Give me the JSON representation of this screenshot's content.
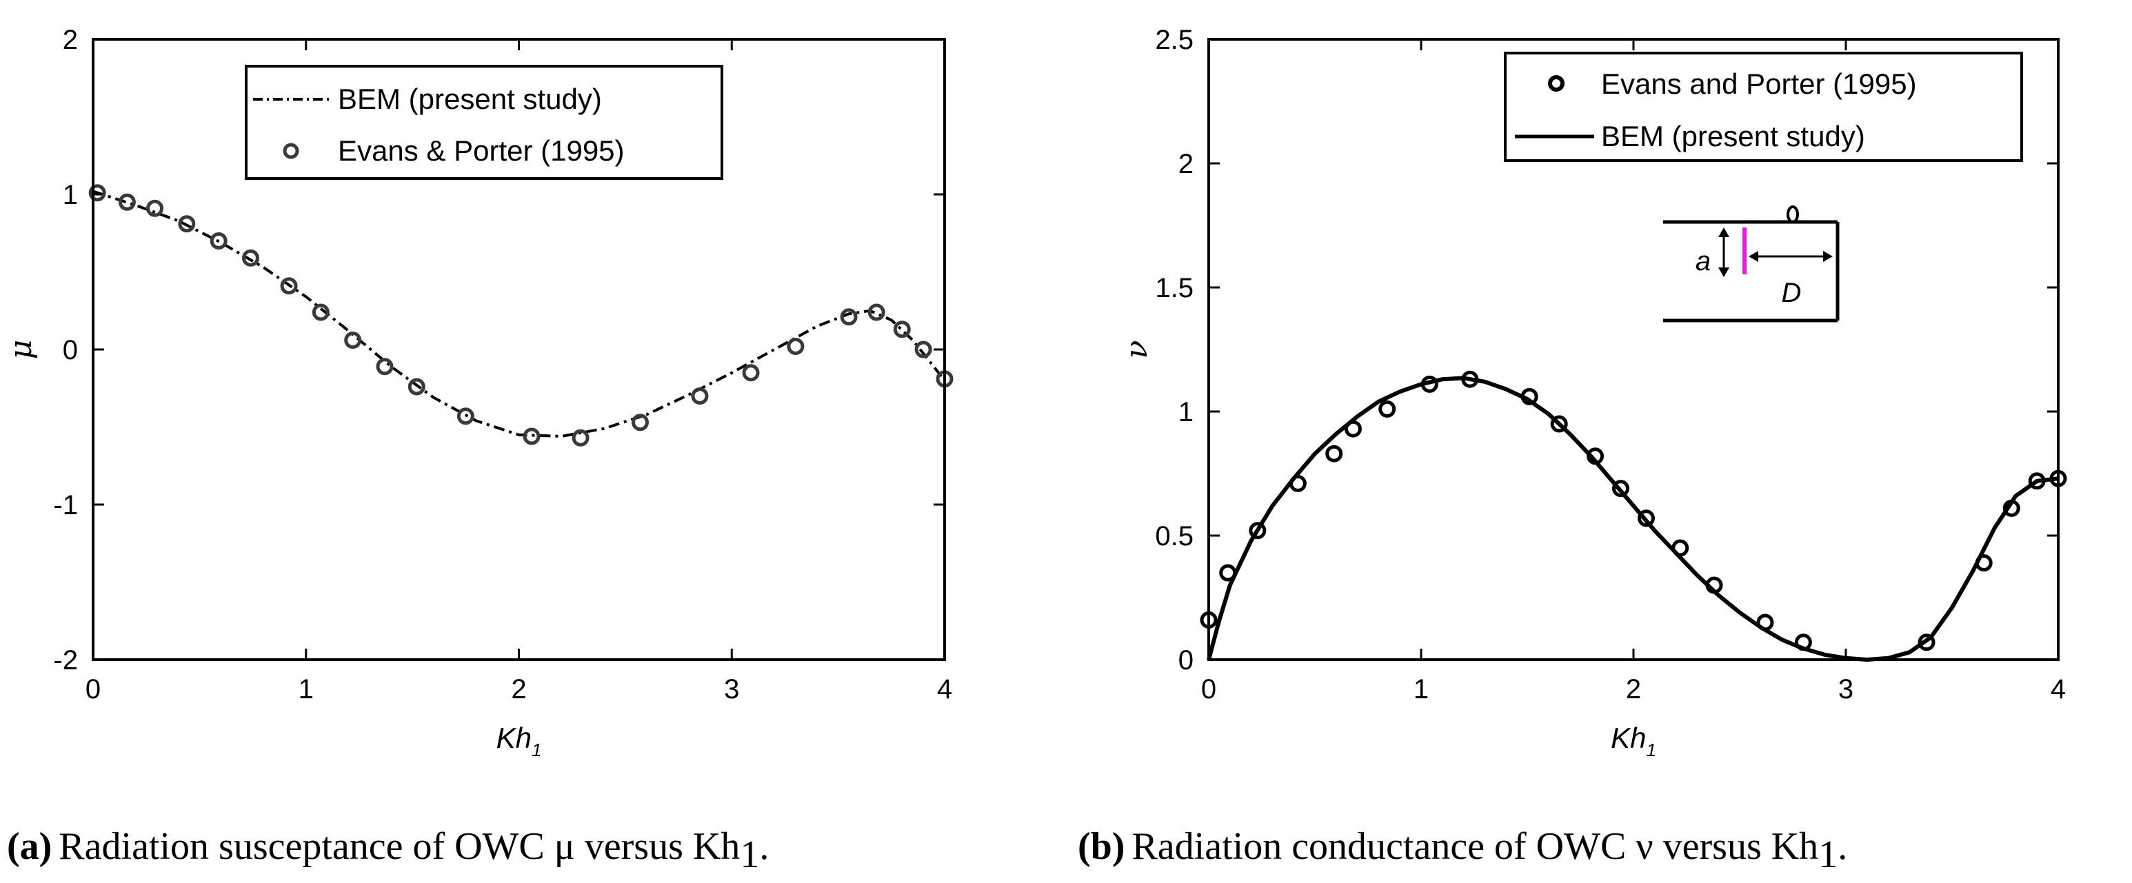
{
  "chart_data": [
    {
      "type": "line",
      "panel": "a",
      "xlabel": "Kh",
      "xlabel_sub": "1",
      "ylabel": "μ",
      "xlim": [
        0,
        4
      ],
      "ylim": [
        -2,
        2
      ],
      "xticks": [
        "0",
        "1",
        "2",
        "3",
        "4"
      ],
      "yticks": [
        "-2",
        "-1",
        "0",
        "1",
        "2"
      ],
      "legend_position": "top-center",
      "series": [
        {
          "name": "BEM (present study)",
          "style": "dashdot-line",
          "x": [
            0.0,
            0.2,
            0.4,
            0.6,
            0.8,
            1.0,
            1.2,
            1.4,
            1.6,
            1.8,
            2.0,
            2.2,
            2.4,
            2.6,
            2.8,
            3.0,
            3.2,
            3.4,
            3.55,
            3.65,
            3.75,
            3.85,
            3.92,
            4.0
          ],
          "y": [
            1.02,
            0.93,
            0.83,
            0.69,
            0.53,
            0.34,
            0.12,
            -0.11,
            -0.31,
            -0.46,
            -0.55,
            -0.56,
            -0.51,
            -0.42,
            -0.29,
            -0.15,
            0.0,
            0.15,
            0.23,
            0.25,
            0.19,
            0.06,
            -0.06,
            -0.2
          ]
        },
        {
          "name": "Evans & Porter (1995)",
          "style": "circle-markers",
          "x": [
            0.02,
            0.16,
            0.29,
            0.44,
            0.59,
            0.74,
            0.92,
            1.07,
            1.22,
            1.37,
            1.52,
            1.75,
            2.06,
            2.29,
            2.57,
            2.85,
            3.09,
            3.3,
            3.55,
            3.68,
            3.8,
            3.9,
            4.0
          ],
          "y": [
            1.01,
            0.95,
            0.91,
            0.81,
            0.7,
            0.59,
            0.41,
            0.24,
            0.06,
            -0.11,
            -0.24,
            -0.43,
            -0.56,
            -0.57,
            -0.47,
            -0.3,
            -0.15,
            0.02,
            0.21,
            0.24,
            0.13,
            0.0,
            -0.19
          ]
        }
      ]
    },
    {
      "type": "line",
      "panel": "b",
      "xlabel": "Kh",
      "xlabel_sub": "1",
      "ylabel": "ν",
      "xlim": [
        0,
        4
      ],
      "ylim": [
        0,
        2.5
      ],
      "xticks": [
        "0",
        "1",
        "2",
        "3",
        "4"
      ],
      "yticks": [
        "0",
        "0.5",
        "1",
        "1.5",
        "2",
        "2.5"
      ],
      "legend_position": "top-right",
      "inset_labels": [
        "a",
        "D"
      ],
      "series": [
        {
          "name": "Evans and Porter (1995)",
          "style": "circle-markers",
          "x": [
            0.0,
            0.09,
            0.23,
            0.42,
            0.59,
            0.68,
            0.84,
            1.04,
            1.23,
            1.51,
            1.65,
            1.82,
            1.94,
            2.06,
            2.22,
            2.38,
            2.62,
            2.8,
            3.38,
            3.65,
            3.78,
            3.9,
            4.0
          ],
          "y": [
            0.16,
            0.35,
            0.52,
            0.71,
            0.83,
            0.93,
            1.01,
            1.11,
            1.13,
            1.06,
            0.95,
            0.82,
            0.69,
            0.57,
            0.45,
            0.3,
            0.15,
            0.07,
            0.07,
            0.39,
            0.61,
            0.72,
            0.73
          ]
        },
        {
          "name": "BEM (present study)",
          "style": "solid-line",
          "x": [
            0.0,
            0.05,
            0.1,
            0.2,
            0.3,
            0.4,
            0.5,
            0.6,
            0.7,
            0.8,
            0.9,
            1.0,
            1.1,
            1.2,
            1.3,
            1.4,
            1.5,
            1.6,
            1.7,
            1.8,
            1.9,
            2.0,
            2.1,
            2.2,
            2.3,
            2.4,
            2.5,
            2.6,
            2.7,
            2.8,
            2.9,
            3.0,
            3.1,
            3.2,
            3.3,
            3.4,
            3.5,
            3.6,
            3.7,
            3.8,
            3.9,
            4.0
          ],
          "y": [
            0.0,
            0.16,
            0.3,
            0.48,
            0.62,
            0.73,
            0.83,
            0.91,
            0.98,
            1.04,
            1.08,
            1.11,
            1.13,
            1.135,
            1.12,
            1.09,
            1.05,
            0.99,
            0.91,
            0.82,
            0.72,
            0.62,
            0.52,
            0.43,
            0.34,
            0.26,
            0.19,
            0.13,
            0.08,
            0.045,
            0.02,
            0.006,
            0.0,
            0.006,
            0.03,
            0.09,
            0.21,
            0.36,
            0.53,
            0.66,
            0.72,
            0.73
          ]
        }
      ]
    }
  ],
  "captions": {
    "a": {
      "label": "(a)",
      "text": "Radiation susceptance of OWC μ versus Kh",
      "sub": "1",
      "end": "."
    },
    "b": {
      "label": "(b)",
      "text": "Radiation conductance of OWC  ν versus Kh",
      "sub": "1",
      "end": "."
    }
  },
  "colors": {
    "line": "#000000",
    "marker_a": "#3a3a3a",
    "inset_accent": "#e51ee5"
  }
}
